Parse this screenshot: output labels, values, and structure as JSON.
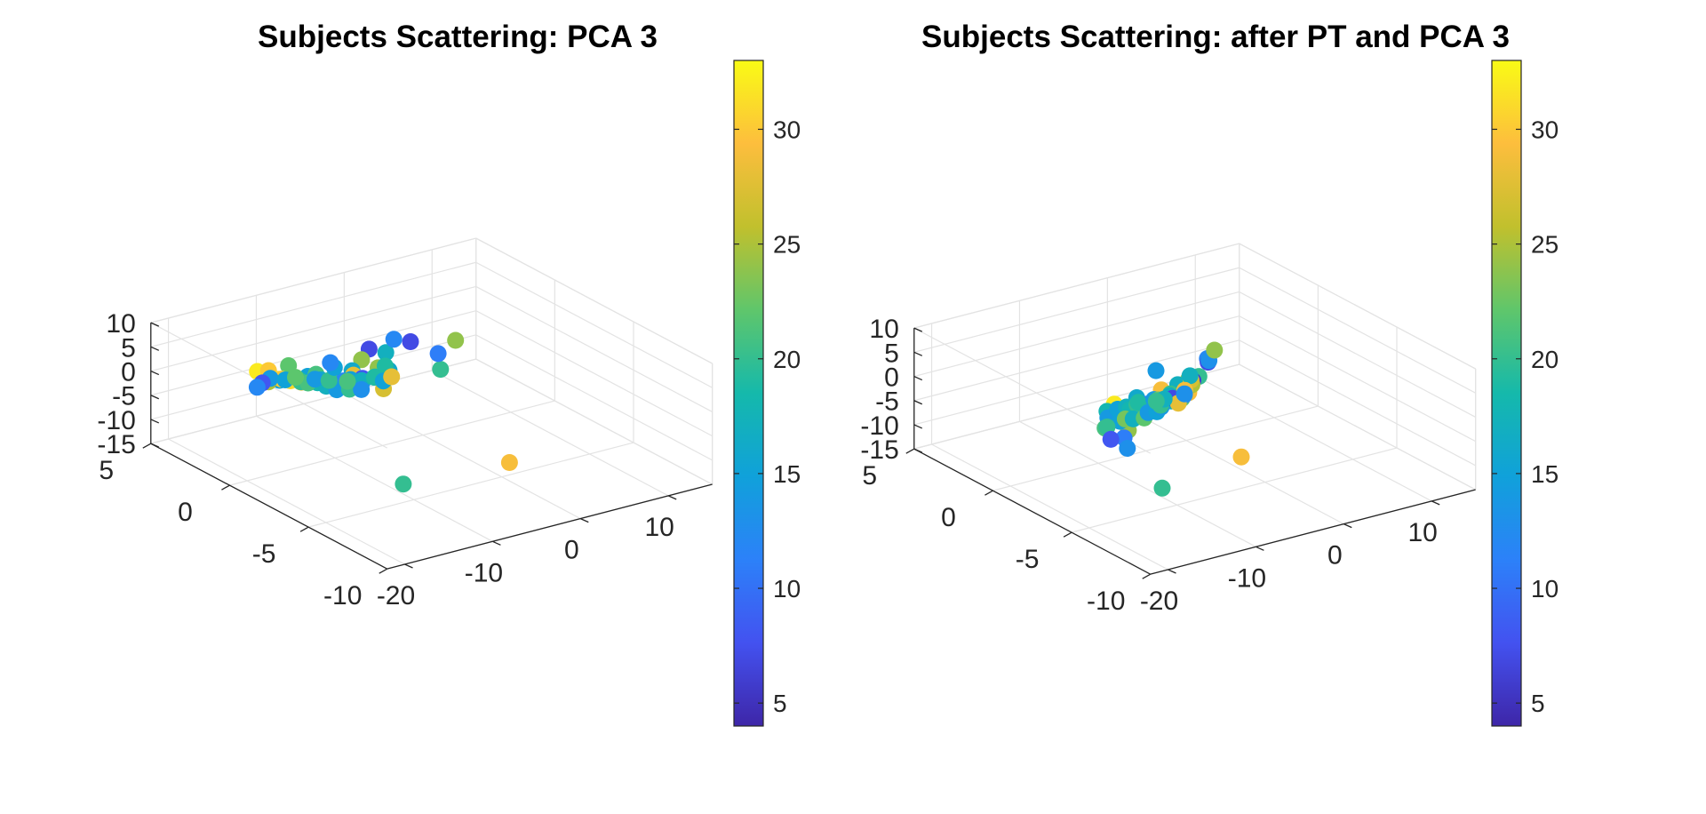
{
  "chart_data": [
    {
      "type": "scatter",
      "title": "Subjects Scattering: PCA 3",
      "xlim": [
        -22,
        15
      ],
      "ylim": [
        -10,
        5
      ],
      "zlim": [
        -15,
        10
      ],
      "x_ticks": [
        "-20",
        "-10",
        "0",
        "10"
      ],
      "y_ticks": [
        "-10",
        "-5",
        "0",
        "5"
      ],
      "z_ticks": [
        "-15",
        "-10",
        "-5",
        "0",
        "5",
        "10"
      ],
      "grid": true,
      "colorbar": {
        "min": 4,
        "max": 33,
        "ticks": [
          "5",
          "10",
          "15",
          "20",
          "25",
          "30"
        ]
      },
      "points": [
        [
          -7.5,
          -5.3,
          11.3,
          20
        ],
        [
          -9.0,
          -1.6,
          9.8,
          7
        ],
        [
          -9.5,
          -1.4,
          7.5,
          24
        ],
        [
          -12.0,
          -2.2,
          7.8,
          16
        ],
        [
          -15.8,
          -1.5,
          7.2,
          15
        ],
        [
          -10.0,
          -3.0,
          7.0,
          20
        ],
        [
          -17.4,
          0.8,
          5.0,
          32
        ],
        [
          -16.5,
          0.6,
          5.1,
          30
        ],
        [
          -16.8,
          -0.2,
          4.8,
          31
        ],
        [
          -14.4,
          0.5,
          5.3,
          22
        ],
        [
          -13.6,
          -0.8,
          5.4,
          21
        ],
        [
          -12.0,
          -2.0,
          5.2,
          12
        ],
        [
          -10.6,
          -1.5,
          5.0,
          28
        ],
        [
          -7.8,
          -1.5,
          5.2,
          24
        ],
        [
          -5.3,
          -0.6,
          5.6,
          17
        ],
        [
          -12.0,
          -0.8,
          3.2,
          30
        ],
        [
          -9.4,
          -1.4,
          3.6,
          8
        ],
        [
          -15.6,
          0.4,
          3.0,
          15
        ],
        [
          -14.0,
          0.0,
          3.0,
          18
        ],
        [
          -12.5,
          -0.5,
          3.2,
          16
        ],
        [
          -11.3,
          -0.8,
          3.0,
          23
        ],
        [
          -10.2,
          -1.1,
          3.2,
          15
        ],
        [
          -8.0,
          -1.4,
          3.2,
          18
        ],
        [
          -6.0,
          -1.2,
          3.3,
          16
        ],
        [
          -5.2,
          -0.5,
          2.6,
          19
        ],
        [
          -14.3,
          1.0,
          1.6,
          30
        ],
        [
          -14.0,
          0.6,
          1.8,
          31
        ],
        [
          -13.3,
          0.3,
          1.7,
          28
        ],
        [
          -13.0,
          0.5,
          1.3,
          20
        ],
        [
          -12.0,
          0.0,
          1.5,
          18
        ],
        [
          -11.7,
          -0.4,
          2.0,
          17
        ],
        [
          -11.0,
          -0.5,
          1.3,
          20
        ],
        [
          -10.0,
          -0.5,
          1.6,
          14
        ],
        [
          -9.4,
          -0.2,
          1.0,
          12
        ],
        [
          -8.3,
          -0.8,
          1.4,
          13
        ],
        [
          -7.7,
          -0.4,
          0.6,
          17
        ],
        [
          -7.5,
          -1.1,
          2.4,
          19
        ],
        [
          -12.0,
          0.6,
          0.4,
          21
        ],
        [
          -11.0,
          0.0,
          0.3,
          17
        ],
        [
          -10.7,
          -0.5,
          0.3,
          14
        ],
        [
          -9.8,
          -0.8,
          0.5,
          20
        ],
        [
          -8.8,
          -1.0,
          0.3,
          13
        ],
        [
          -7.0,
          -1.4,
          0.3,
          27
        ],
        [
          -6.3,
          -1.0,
          0.9,
          15
        ],
        [
          -5.0,
          -0.8,
          0.8,
          28
        ],
        [
          -14.7,
          1.6,
          0.2,
          25
        ],
        [
          -13.8,
          2.0,
          -0.2,
          14
        ],
        [
          -12.8,
          1.6,
          -0.3,
          15
        ],
        [
          -12.0,
          1.4,
          0.2,
          22
        ],
        [
          -10.5,
          1.0,
          -0.2,
          14
        ],
        [
          -8.0,
          1.5,
          -2.5,
          20
        ],
        [
          -6.8,
          1.0,
          -2.4,
          21
        ],
        [
          -6.5,
          2.0,
          -1.4,
          15
        ],
        [
          -5.7,
          2.7,
          -2.0,
          12
        ],
        [
          -12.9,
          3.0,
          -3.3,
          8
        ],
        [
          -11.7,
          4.0,
          -6.5,
          12
        ],
        [
          2.8,
          0.6,
          -0.5,
          11
        ],
        [
          7.3,
          2.0,
          -2.3,
          24
        ],
        [
          4.5,
          3.3,
          -3.5,
          7
        ],
        [
          3.5,
          3.8,
          -3.4,
          12
        ],
        [
          -11.2,
          -5.0,
          -11.2,
          20
        ],
        [
          -1.8,
          -6.5,
          -8.6,
          29
        ]
      ]
    },
    {
      "type": "scatter",
      "title": "Subjects Scattering: after PT and PCA 3",
      "xlim": [
        -22,
        15
      ],
      "ylim": [
        -10,
        5
      ],
      "zlim": [
        -15,
        10
      ],
      "x_ticks": [
        "-20",
        "-10",
        "0",
        "10"
      ],
      "y_ticks": [
        "-10",
        "-5",
        "0",
        "5"
      ],
      "z_ticks": [
        "-15",
        "-10",
        "-5",
        "0",
        "5",
        "10"
      ],
      "grid": true,
      "colorbar": {
        "min": 4,
        "max": 33,
        "ticks": [
          "5",
          "10",
          "15",
          "20",
          "25",
          "30"
        ]
      },
      "points": [
        [
          -6.8,
          -4.6,
          9.4,
          20
        ],
        [
          -7.3,
          -4.5,
          8.6,
          6
        ],
        [
          -7.3,
          -4.2,
          8.2,
          24
        ],
        [
          -8.5,
          -4.2,
          7.8,
          17
        ],
        [
          -12.8,
          -4.0,
          6.8,
          16
        ],
        [
          -10.0,
          -4.0,
          7.1,
          29
        ],
        [
          -13.4,
          -4.3,
          5.6,
          31
        ],
        [
          -12.6,
          -4.3,
          5.0,
          29
        ],
        [
          -12.8,
          -4.0,
          4.4,
          23
        ],
        [
          -13.2,
          -2.8,
          3.6,
          32
        ],
        [
          -12.6,
          -3.8,
          4.2,
          22
        ],
        [
          -11.8,
          -3.6,
          4.4,
          20
        ],
        [
          -11.0,
          -3.6,
          3.9,
          11
        ],
        [
          -10.1,
          -3.6,
          4.2,
          20
        ],
        [
          -9.4,
          -3.6,
          3.7,
          18
        ],
        [
          -8.7,
          -3.9,
          4.0,
          17
        ],
        [
          -7.5,
          -3.9,
          3.9,
          22
        ],
        [
          -5.8,
          -3.4,
          3.5,
          29
        ],
        [
          -4.4,
          -2.7,
          3.0,
          28
        ],
        [
          -4.0,
          -2.6,
          2.9,
          25
        ],
        [
          -3.4,
          -2.2,
          2.9,
          27
        ],
        [
          -2.8,
          -1.8,
          2.8,
          17
        ],
        [
          -14.4,
          -3.0,
          3.0,
          18
        ],
        [
          -14.3,
          -3.0,
          1.6,
          14
        ],
        [
          -13.0,
          -2.9,
          2.6,
          15
        ],
        [
          -12.0,
          -2.9,
          2.6,
          17
        ],
        [
          -11.6,
          -2.9,
          1.9,
          18
        ],
        [
          -10.8,
          -2.9,
          2.5,
          20
        ],
        [
          -10.3,
          -2.7,
          2.4,
          19
        ],
        [
          -8.7,
          -2.8,
          2.4,
          14
        ],
        [
          -8.2,
          -2.8,
          2.1,
          22
        ],
        [
          -6.8,
          -2.8,
          2.0,
          18
        ],
        [
          -5.6,
          -3.0,
          2.2,
          12
        ],
        [
          -6.2,
          -2.6,
          1.6,
          22
        ],
        [
          -5.9,
          -2.3,
          1.4,
          20
        ],
        [
          -5.7,
          -2.3,
          0.9,
          21
        ],
        [
          -5.6,
          -2.1,
          0.5,
          17
        ],
        [
          -5.5,
          -2.2,
          0.1,
          7
        ],
        [
          -5.2,
          -2.4,
          -0.7,
          28
        ],
        [
          -12.5,
          -3.3,
          -1.3,
          24
        ],
        [
          -12.2,
          -2.6,
          -0.8,
          15
        ],
        [
          -11.6,
          -2.6,
          -0.6,
          23
        ],
        [
          -10.7,
          -2.6,
          -1.0,
          17
        ],
        [
          -9.8,
          -2.8,
          -0.9,
          22
        ],
        [
          -9.0,
          -2.6,
          -0.5,
          14
        ],
        [
          -8.0,
          -2.6,
          -0.8,
          15
        ],
        [
          -6.8,
          -2.2,
          -1.1,
          14
        ],
        [
          -6.5,
          -2.0,
          -1.2,
          20
        ],
        [
          -5.2,
          -1.5,
          -1.4,
          17
        ],
        [
          -2.5,
          -1.3,
          -1.2,
          29
        ],
        [
          -13.0,
          -2.1,
          -2.7,
          21
        ],
        [
          -12.8,
          -3.2,
          -2.9,
          11
        ],
        [
          -5.2,
          -1.0,
          -2.7,
          20
        ],
        [
          -2.0,
          -1.0,
          -2.7,
          13
        ],
        [
          -10.8,
          -1.0,
          -5.4,
          20
        ],
        [
          -12.7,
          -2.3,
          -4.8,
          8
        ],
        [
          -11.0,
          -2.4,
          -7.3,
          13
        ],
        [
          -2.0,
          0.8,
          -1.0,
          14
        ],
        [
          3.3,
          0.5,
          -0.5,
          12
        ],
        [
          5.0,
          1.4,
          -3.6,
          7
        ],
        [
          5.1,
          1.4,
          -3.3,
          13
        ],
        [
          6.8,
          2.0,
          -3.0,
          24
        ],
        [
          -10.8,
          -4.5,
          -12.0,
          20
        ],
        [
          -1.8,
          -4.5,
          -9.8,
          29
        ]
      ]
    }
  ]
}
